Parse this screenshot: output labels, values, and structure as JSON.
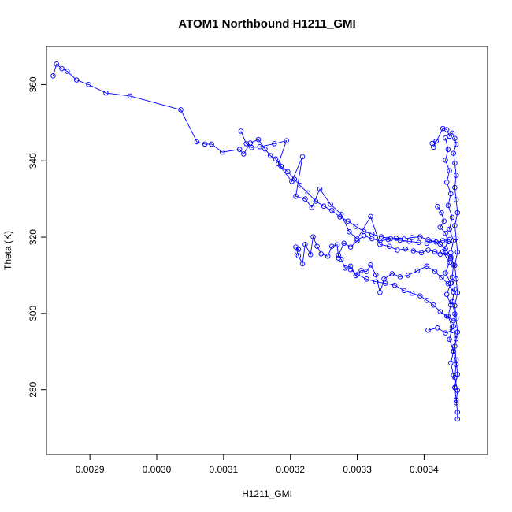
{
  "chart_data": {
    "type": "scatter",
    "title": "ATOM1 Northbound H1211_GMI",
    "xlabel": "H1211_GMI",
    "ylabel": "Theta (K)",
    "xlim": [
      0.002835,
      0.003495
    ],
    "ylim": [
      263,
      370
    ],
    "xticks": [
      0.0029,
      0.003,
      0.0031,
      0.0032,
      0.0033,
      0.0034
    ],
    "xtick_labels": [
      "0.0029",
      "0.0030",
      "0.0031",
      "0.0032",
      "0.0033",
      "0.0034"
    ],
    "yticks": [
      280,
      300,
      320,
      340,
      360
    ],
    "ytick_labels": [
      "280",
      "300",
      "320",
      "340",
      "360"
    ],
    "grid": false,
    "legend": "none",
    "marker": "open-circle",
    "color": "#0000ff",
    "series": [
      {
        "values": [
          [
            0.002845,
            362.3
          ],
          [
            0.00285,
            365.4
          ],
          [
            0.002858,
            364.2
          ],
          [
            0.002866,
            363.5
          ],
          [
            0.00288,
            361.2
          ],
          [
            0.002898,
            360.0
          ],
          [
            0.002924,
            357.8
          ],
          [
            0.00296,
            357.0
          ],
          [
            0.003036,
            353.4
          ],
          [
            0.00306,
            345.0
          ],
          [
            0.003072,
            344.4
          ],
          [
            0.003082,
            344.4
          ],
          [
            0.003098,
            342.3
          ],
          [
            0.003124,
            343.0
          ],
          [
            0.00313,
            341.8
          ],
          [
            0.00314,
            344.7
          ],
          [
            0.003152,
            345.6
          ],
          [
            0.003162,
            343.1
          ],
          [
            0.00317,
            341.4
          ],
          [
            0.003178,
            340.5
          ],
          [
            0.003186,
            338.6
          ],
          [
            0.003196,
            337.2
          ],
          [
            0.003206,
            335.2
          ],
          [
            0.003214,
            333.6
          ],
          [
            0.003226,
            331.6
          ],
          [
            0.003238,
            329.4
          ],
          [
            0.00325,
            328.1
          ],
          [
            0.003262,
            327.0
          ],
          [
            0.003274,
            325.3
          ],
          [
            0.003286,
            324.2
          ],
          [
            0.003298,
            322.8
          ],
          [
            0.00331,
            321.5
          ],
          [
            0.003322,
            320.8
          ],
          [
            0.003336,
            320.1
          ],
          [
            0.00335,
            319.6
          ],
          [
            0.003364,
            319.2
          ],
          [
            0.003378,
            318.9
          ],
          [
            0.003392,
            318.6
          ],
          [
            0.003404,
            318.4
          ],
          [
            0.003414,
            319.0
          ],
          [
            0.003424,
            318.2
          ],
          [
            0.003432,
            317.0
          ],
          [
            0.00344,
            314.8
          ]
        ]
      },
      {
        "values": [
          [
            0.003126,
            347.8
          ],
          [
            0.003134,
            344.5
          ],
          [
            0.003142,
            343.5
          ],
          [
            0.003154,
            343.7
          ],
          [
            0.003176,
            344.5
          ],
          [
            0.003194,
            345.3
          ],
          [
            0.003182,
            339.2
          ],
          [
            0.003202,
            334.6
          ],
          [
            0.003218,
            341.1
          ],
          [
            0.003208,
            330.7
          ],
          [
            0.003222,
            330.0
          ],
          [
            0.003232,
            327.8
          ],
          [
            0.003244,
            332.6
          ],
          [
            0.00326,
            328.6
          ],
          [
            0.003276,
            326.0
          ],
          [
            0.003288,
            321.4
          ],
          [
            0.0033,
            319.5
          ],
          [
            0.00332,
            325.4
          ],
          [
            0.003334,
            318.1
          ],
          [
            0.003348,
            317.6
          ],
          [
            0.00336,
            316.6
          ],
          [
            0.003372,
            316.9
          ],
          [
            0.003384,
            316.4
          ],
          [
            0.003396,
            315.9
          ],
          [
            0.003406,
            316.6
          ],
          [
            0.003416,
            316.2
          ],
          [
            0.003424,
            315.5
          ],
          [
            0.003432,
            315.9
          ],
          [
            0.00344,
            314.4
          ]
        ]
      },
      {
        "values": [
          [
            0.003208,
            317.4
          ],
          [
            0.003212,
            316.8
          ],
          [
            0.00321,
            316.2
          ],
          [
            0.003212,
            315.1
          ],
          [
            0.003218,
            313.0
          ],
          [
            0.003222,
            318.1
          ],
          [
            0.00323,
            315.4
          ],
          [
            0.003234,
            320.1
          ],
          [
            0.00324,
            317.6
          ],
          [
            0.003246,
            315.6
          ],
          [
            0.003256,
            315.0
          ],
          [
            0.003262,
            317.6
          ],
          [
            0.00327,
            318.0
          ],
          [
            0.003272,
            314.5
          ],
          [
            0.003272,
            315.3
          ],
          [
            0.00328,
            318.4
          ],
          [
            0.00329,
            317.4
          ],
          [
            0.0033,
            319.0
          ],
          [
            0.00331,
            320.4
          ],
          [
            0.003322,
            319.6
          ],
          [
            0.003334,
            319.0
          ],
          [
            0.003346,
            319.4
          ],
          [
            0.003358,
            319.7
          ],
          [
            0.00337,
            319.5
          ],
          [
            0.003382,
            319.9
          ],
          [
            0.003394,
            320.1
          ],
          [
            0.003406,
            319.3
          ],
          [
            0.003418,
            318.7
          ],
          [
            0.003428,
            319.1
          ],
          [
            0.003438,
            319.4
          ]
        ]
      },
      {
        "values": [
          [
            0.003276,
            314.2
          ],
          [
            0.003282,
            311.9
          ],
          [
            0.00329,
            312.4
          ],
          [
            0.003298,
            309.9
          ],
          [
            0.003306,
            311.3
          ],
          [
            0.003314,
            311.0
          ],
          [
            0.00332,
            312.7
          ],
          [
            0.003328,
            310.1
          ],
          [
            0.003334,
            305.5
          ],
          [
            0.00334,
            309.0
          ],
          [
            0.003352,
            310.4
          ],
          [
            0.003364,
            309.6
          ],
          [
            0.003376,
            310.0
          ],
          [
            0.00339,
            311.2
          ],
          [
            0.003404,
            312.4
          ],
          [
            0.003416,
            311.0
          ],
          [
            0.003426,
            309.4
          ],
          [
            0.003436,
            307.8
          ],
          [
            0.003444,
            305.6
          ]
        ]
      },
      {
        "values": [
          [
            0.00329,
            311.5
          ],
          [
            0.0033,
            310.2
          ],
          [
            0.003314,
            309.0
          ],
          [
            0.003328,
            308.3
          ],
          [
            0.003342,
            307.9
          ],
          [
            0.003356,
            307.4
          ],
          [
            0.00337,
            306.0
          ],
          [
            0.003382,
            305.3
          ],
          [
            0.003394,
            304.6
          ],
          [
            0.003404,
            303.4
          ],
          [
            0.003414,
            302.2
          ],
          [
            0.003424,
            300.5
          ],
          [
            0.003434,
            299.3
          ],
          [
            0.003444,
            298.1
          ]
        ]
      },
      {
        "values": [
          [
            0.003406,
            295.6
          ],
          [
            0.00342,
            296.2
          ],
          [
            0.003432,
            294.9
          ],
          [
            0.003442,
            295.5
          ]
        ]
      },
      {
        "values": [
          [
            0.003412,
            344.6
          ],
          [
            0.003418,
            345.2
          ],
          [
            0.003414,
            343.6
          ],
          [
            0.003428,
            348.5
          ],
          [
            0.003434,
            348.2
          ],
          [
            0.003438,
            346.5
          ],
          [
            0.003442,
            347.3
          ],
          [
            0.003446,
            345.9
          ],
          [
            0.003448,
            344.3
          ],
          [
            0.003444,
            342.0
          ],
          [
            0.003446,
            339.4
          ],
          [
            0.003448,
            336.2
          ],
          [
            0.003446,
            333.0
          ],
          [
            0.003448,
            329.8
          ],
          [
            0.00345,
            326.4
          ],
          [
            0.003446,
            323.0
          ],
          [
            0.003448,
            319.8
          ],
          [
            0.00345,
            316.1
          ],
          [
            0.003446,
            312.6
          ],
          [
            0.003448,
            309.0
          ],
          [
            0.00345,
            305.4
          ],
          [
            0.003446,
            302.0
          ],
          [
            0.003448,
            298.6
          ],
          [
            0.00345,
            295.1
          ],
          [
            0.003446,
            291.4
          ],
          [
            0.003448,
            287.8
          ],
          [
            0.00345,
            284.0
          ],
          [
            0.003446,
            280.6
          ],
          [
            0.003448,
            277.3
          ],
          [
            0.00345,
            274.1
          ],
          [
            0.00345,
            272.3
          ]
        ]
      },
      {
        "values": [
          [
            0.00342,
            328.0
          ],
          [
            0.003426,
            326.4
          ],
          [
            0.00343,
            324.2
          ],
          [
            0.003424,
            322.6
          ],
          [
            0.003432,
            321.0
          ],
          [
            0.003436,
            318.8
          ],
          [
            0.003428,
            316.2
          ],
          [
            0.003438,
            313.4
          ],
          [
            0.003432,
            310.6
          ],
          [
            0.00344,
            307.9
          ],
          [
            0.003434,
            305.0
          ],
          [
            0.00344,
            302.2
          ],
          [
            0.003436,
            299.3
          ],
          [
            0.003442,
            296.4
          ],
          [
            0.003438,
            293.2
          ],
          [
            0.003444,
            290.1
          ],
          [
            0.00344,
            287.0
          ],
          [
            0.003444,
            283.8
          ],
          [
            0.003446,
            280.5
          ]
        ]
      },
      {
        "values": [
          [
            0.003432,
            346.0
          ],
          [
            0.003436,
            343.0
          ],
          [
            0.003432,
            340.2
          ],
          [
            0.003438,
            337.4
          ],
          [
            0.003434,
            334.4
          ],
          [
            0.00344,
            331.4
          ],
          [
            0.003436,
            328.3
          ],
          [
            0.003442,
            325.2
          ],
          [
            0.003438,
            322.1
          ],
          [
            0.003444,
            319.0
          ],
          [
            0.00344,
            315.9
          ],
          [
            0.003444,
            312.7
          ],
          [
            0.003442,
            309.5
          ],
          [
            0.003446,
            306.3
          ],
          [
            0.003442,
            303.1
          ],
          [
            0.003446,
            299.9
          ],
          [
            0.003444,
            296.6
          ],
          [
            0.003448,
            293.3
          ],
          [
            0.003444,
            290.0
          ],
          [
            0.003448,
            286.6
          ],
          [
            0.003446,
            283.2
          ],
          [
            0.00345,
            279.8
          ],
          [
            0.003448,
            276.6
          ]
        ]
      }
    ]
  }
}
